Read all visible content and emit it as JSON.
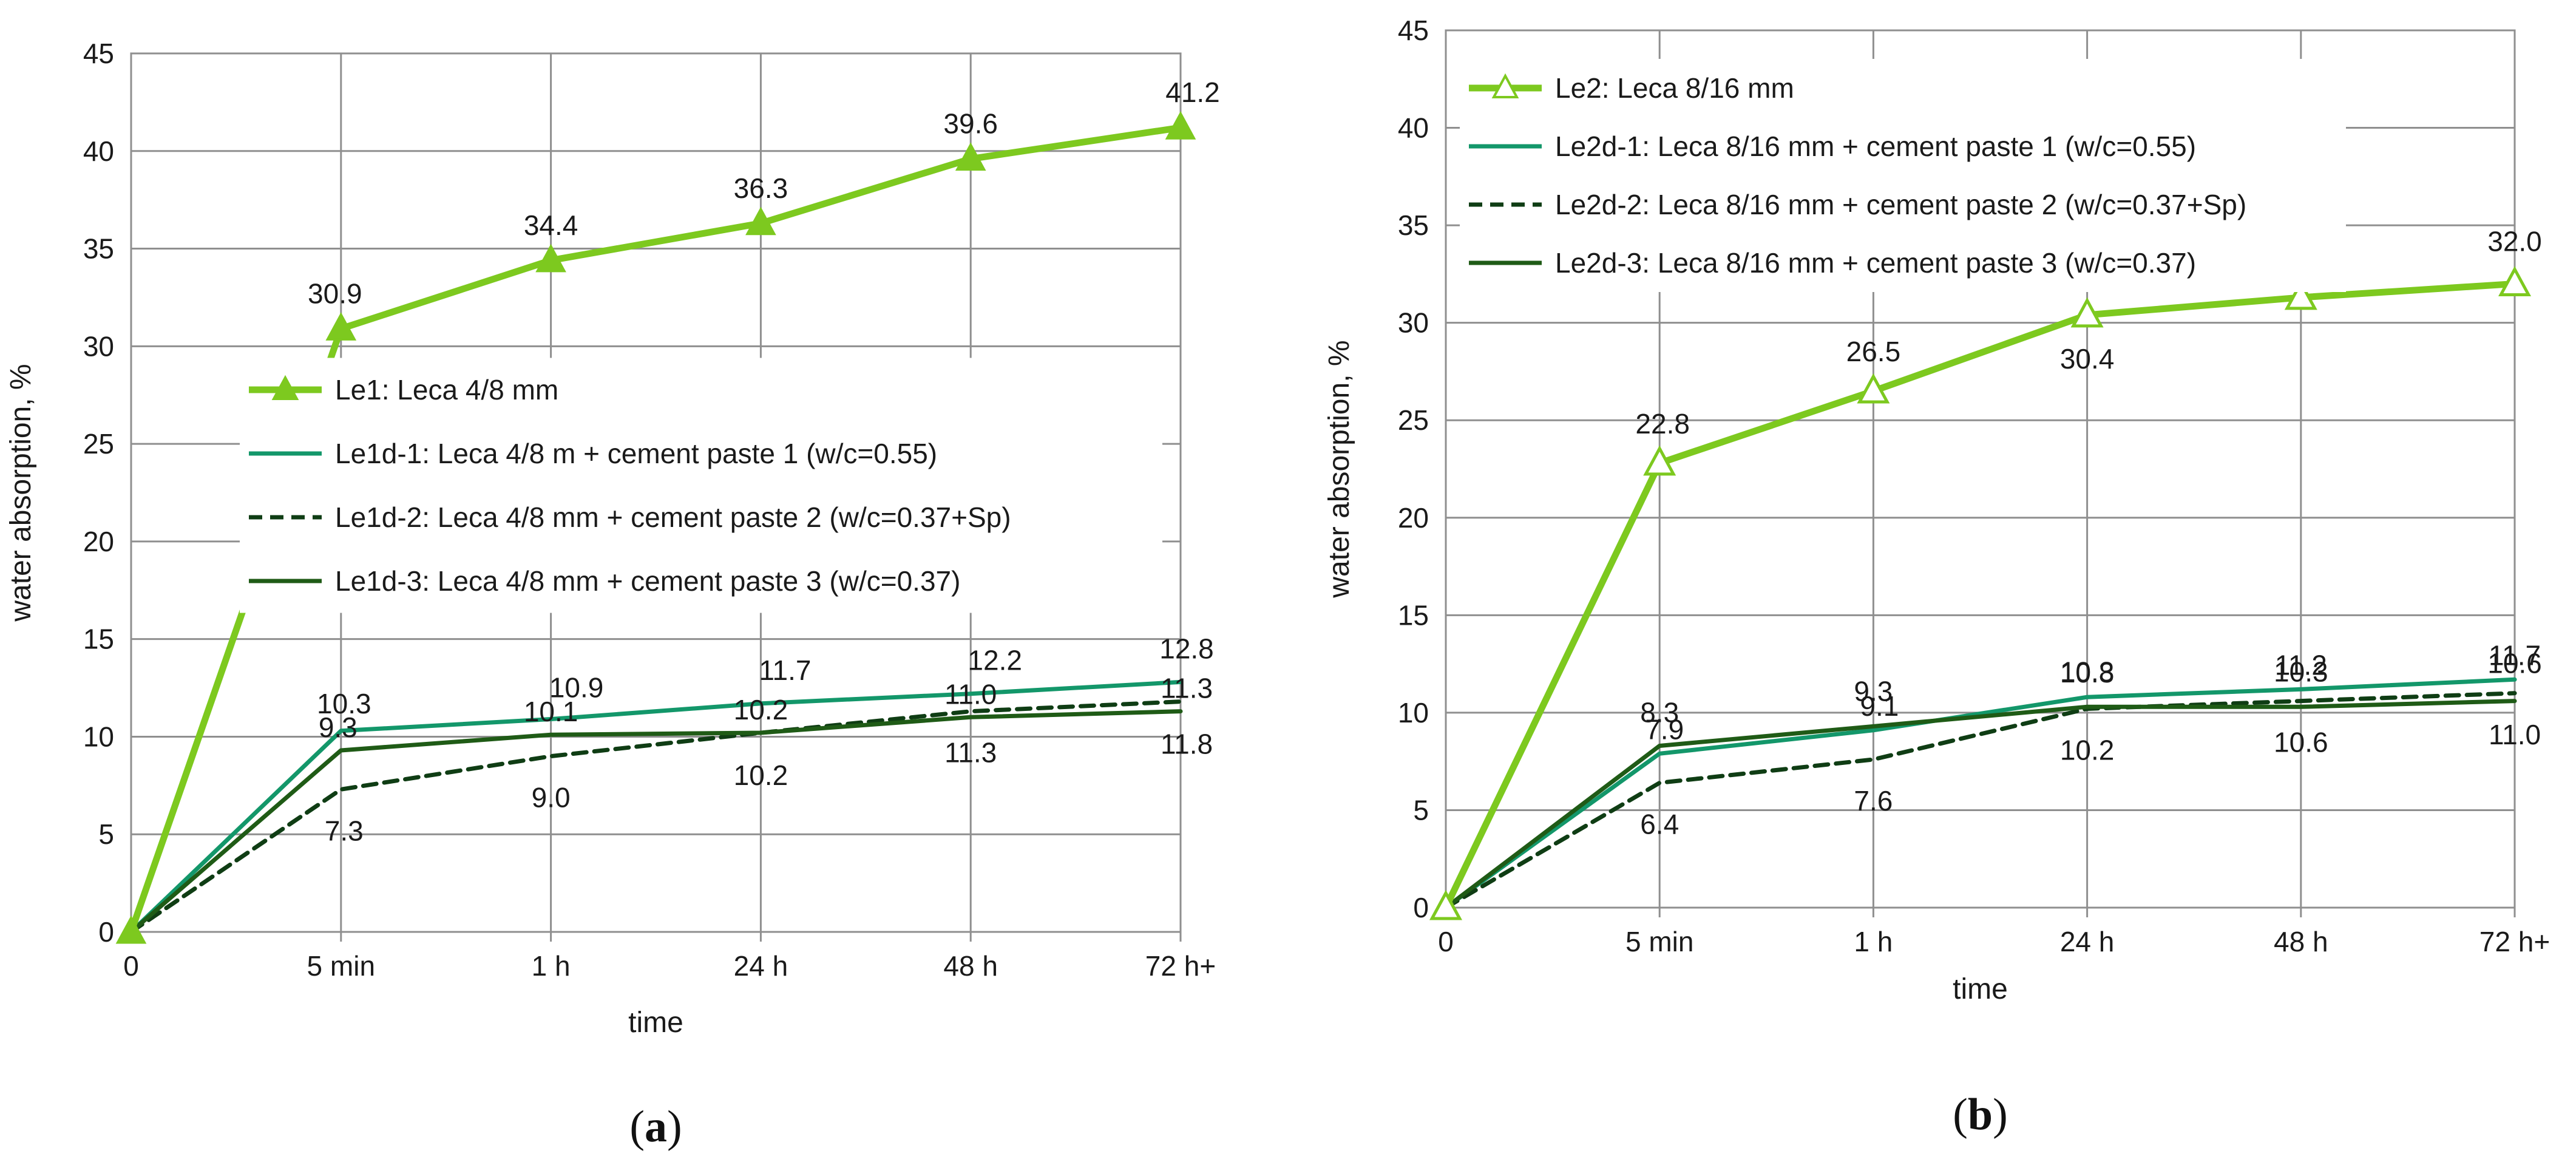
{
  "chart_data": [
    {
      "type": "line",
      "panel_label": "a",
      "categories": [
        "0",
        "5 min",
        "1 h",
        "24 h",
        "48 h",
        "72 h+"
      ],
      "xlabel": "time",
      "ylabel": "water absorption, %",
      "ylim": [
        0,
        45
      ],
      "yticks": [
        "0",
        "5",
        "10",
        "15",
        "20",
        "25",
        "30",
        "35",
        "40",
        "45"
      ],
      "grid": true,
      "legend_position": "center-left",
      "series": [
        {
          "name": "Le1: Leca 4/8 mm",
          "values": [
            0,
            30.9,
            34.4,
            36.3,
            39.6,
            41.2
          ],
          "labels": [
            "",
            "30.9",
            "34.4",
            "36.3",
            "39.6",
            "41.2"
          ],
          "color": "#7dc91f",
          "dash": "solid",
          "marker": "triangle-filled"
        },
        {
          "name": "Le1d-1: Leca 4/8 m + cement paste 1 (w/c=0.55)",
          "values": [
            0,
            10.3,
            10.9,
            11.7,
            12.2,
            12.8
          ],
          "labels": [
            "",
            "10.3",
            "10.9",
            "11.7",
            "12.2",
            "12.8"
          ],
          "color": "#13976a",
          "dash": "solid",
          "marker": "none"
        },
        {
          "name": "Le1d-2: Leca 4/8 mm + cement paste 2 (w/c=0.37+Sp)",
          "values": [
            0,
            7.3,
            9.0,
            10.2,
            11.3,
            11.8
          ],
          "labels": [
            "",
            "7.3",
            "9.0",
            "10.2",
            "11.3",
            "11.8"
          ],
          "color": "#0f3d14",
          "dash": "dashed",
          "marker": "none"
        },
        {
          "name": "Le1d-3: Leca 4/8 mm + cement paste 3 (w/c=0.37)",
          "values": [
            0,
            9.3,
            10.1,
            10.2,
            11.0,
            11.3
          ],
          "labels": [
            "",
            "9.3",
            "10.1",
            "10.2",
            "11.0",
            "11.3"
          ],
          "color": "#1f5b16",
          "dash": "solid",
          "marker": "none"
        }
      ]
    },
    {
      "type": "line",
      "panel_label": "b",
      "categories": [
        "0",
        "5 min",
        "1 h",
        "24 h",
        "48 h",
        "72 h+"
      ],
      "xlabel": "time",
      "ylabel": "water absorption, %",
      "ylim": [
        0,
        45
      ],
      "yticks": [
        "0",
        "5",
        "10",
        "15",
        "20",
        "25",
        "30",
        "35",
        "40",
        "45"
      ],
      "grid": true,
      "legend_position": "top-left",
      "series": [
        {
          "name": "Le2: Leca 8/16 mm",
          "values": [
            0,
            22.8,
            26.5,
            30.4,
            31.3,
            32.0
          ],
          "labels": [
            "",
            "22.8",
            "26.5",
            "30.4",
            "",
            "32.0"
          ],
          "color": "#7dc91f",
          "dash": "solid",
          "marker": "triangle-open"
        },
        {
          "name": "Le2d-1: Leca 8/16 mm + cement paste 1 (w/c=0.55)",
          "values": [
            0,
            7.9,
            9.1,
            10.8,
            11.2,
            11.7
          ],
          "labels": [
            "",
            "7.9",
            "9.1",
            "10.8",
            "11.2",
            "11.7"
          ],
          "color": "#13976a",
          "dash": "solid",
          "marker": "none"
        },
        {
          "name": "Le2d-2: Leca 8/16 mm + cement paste 2 (w/c=0.37+Sp)",
          "values": [
            0,
            6.4,
            7.6,
            10.2,
            10.6,
            11.0
          ],
          "labels": [
            "",
            "6.4",
            "7.6",
            "10.2",
            "10.6",
            "11.0"
          ],
          "color": "#0f3d14",
          "dash": "dashed",
          "marker": "none"
        },
        {
          "name": "Le2d-3: Leca 8/16 mm + cement paste 3 (w/c=0.37)",
          "values": [
            0,
            8.3,
            9.3,
            10.3,
            10.3,
            10.6
          ],
          "labels": [
            "",
            "8.3",
            "9.3",
            "10.3",
            "10.3",
            "10.6"
          ],
          "color": "#1f5b16",
          "dash": "solid",
          "marker": "none"
        }
      ]
    }
  ]
}
